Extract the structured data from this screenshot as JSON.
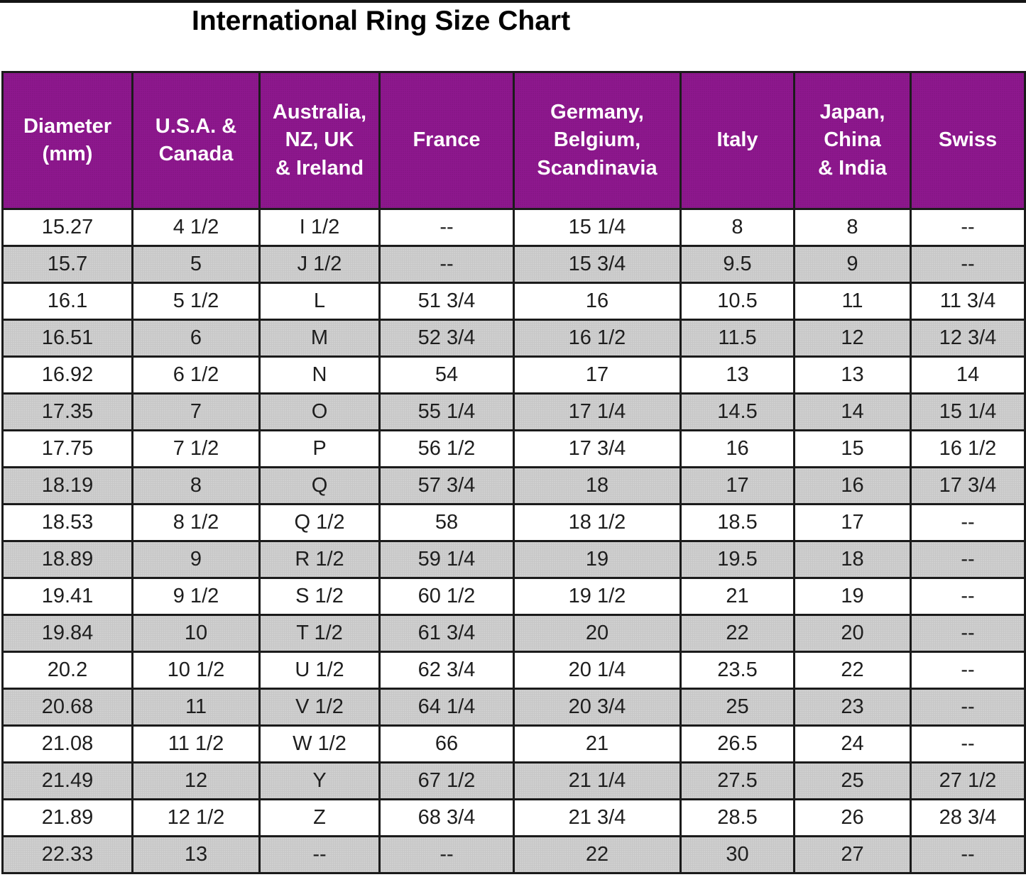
{
  "title": "International Ring Size Chart",
  "chart_data": {
    "type": "table",
    "title": "International Ring Size Chart",
    "columns": [
      "Diameter (mm)",
      "U.S.A. & Canada",
      "Australia, NZ, UK & Ireland",
      "France",
      "Germany, Belgium, Scandinavia",
      "Italy",
      "Japan, China & India",
      "Swiss"
    ],
    "rows": [
      [
        "15.27",
        "4 1/2",
        "I 1/2",
        "--",
        "15 1/4",
        "8",
        "8",
        "--"
      ],
      [
        "15.7",
        "5",
        "J 1/2",
        "--",
        "15 3/4",
        "9.5",
        "9",
        "--"
      ],
      [
        "16.1",
        "5 1/2",
        "L",
        "51 3/4",
        "16",
        "10.5",
        "11",
        "11 3/4"
      ],
      [
        "16.51",
        "6",
        "M",
        "52 3/4",
        "16 1/2",
        "11.5",
        "12",
        "12 3/4"
      ],
      [
        "16.92",
        "6 1/2",
        "N",
        "54",
        "17",
        "13",
        "13",
        "14"
      ],
      [
        "17.35",
        "7",
        "O",
        "55 1/4",
        "17 1/4",
        "14.5",
        "14",
        "15 1/4"
      ],
      [
        "17.75",
        "7 1/2",
        "P",
        "56 1/2",
        "17 3/4",
        "16",
        "15",
        "16 1/2"
      ],
      [
        "18.19",
        "8",
        "Q",
        "57 3/4",
        "18",
        "17",
        "16",
        "17 3/4"
      ],
      [
        "18.53",
        "8 1/2",
        "Q 1/2",
        "58",
        "18 1/2",
        "18.5",
        "17",
        "--"
      ],
      [
        "18.89",
        "9",
        "R 1/2",
        "59 1/4",
        "19",
        "19.5",
        "18",
        "--"
      ],
      [
        "19.41",
        "9 1/2",
        "S 1/2",
        "60 1/2",
        "19 1/2",
        "21",
        "19",
        "--"
      ],
      [
        "19.84",
        "10",
        "T 1/2",
        "61 3/4",
        "20",
        "22",
        "20",
        "--"
      ],
      [
        "20.2",
        "10 1/2",
        "U 1/2",
        "62 3/4",
        "20 1/4",
        "23.5",
        "22",
        "--"
      ],
      [
        "20.68",
        "11",
        "V 1/2",
        "64 1/4",
        "20 3/4",
        "25",
        "23",
        "--"
      ],
      [
        "21.08",
        "11 1/2",
        "W 1/2",
        "66",
        "21",
        "26.5",
        "24",
        "--"
      ],
      [
        "21.49",
        "12",
        "Y",
        "67 1/2",
        "21 1/4",
        "27.5",
        "25",
        "27 1/2"
      ],
      [
        "21.89",
        "12 1/2",
        "Z",
        "68 3/4",
        "21 3/4",
        "28.5",
        "26",
        "28 3/4"
      ],
      [
        "22.33",
        "13",
        "--",
        "--",
        "22",
        "30",
        "27",
        "--"
      ]
    ]
  },
  "display": {
    "column_headings": [
      "Diameter\n(mm)",
      "U.S.A. &\nCanada",
      "Australia,\nNZ, UK\n& Ireland",
      "France",
      "Germany,\nBelgium,\nScandinavia",
      "Italy",
      "Japan,\nChina\n& India",
      "Swiss"
    ],
    "missing_value": "--"
  },
  "colors": {
    "header_bg": "#8e188e",
    "header_text": "#ffffff",
    "row_bg": "#ffffff",
    "row_alt_bg": "#c7c7c7",
    "border": "#1b1b1b",
    "text": "#1e1e1e",
    "title_text": "#000000"
  }
}
